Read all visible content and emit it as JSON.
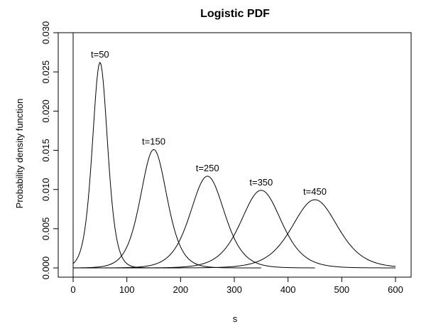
{
  "chart_data": {
    "type": "line",
    "title": "Logistic PDF",
    "xlabel": "s",
    "ylabel": "Probability density function",
    "xlim": [
      0,
      600
    ],
    "ylim": [
      0,
      0.03
    ],
    "x_ticks": [
      0,
      100,
      200,
      300,
      400,
      500,
      600
    ],
    "x_tick_labels": [
      "0",
      "100",
      "200",
      "300",
      "400",
      "500",
      "600"
    ],
    "y_ticks": [
      0,
      0.005,
      0.01,
      0.015,
      0.02,
      0.025,
      0.03
    ],
    "y_tick_labels": [
      "0.000",
      "0.005",
      "0.010",
      "0.015",
      "0.020",
      "0.025",
      "0.030"
    ],
    "grid": false,
    "series": [
      {
        "name": "t=50",
        "location": 50,
        "peak": 0.0262,
        "x_range": [
          0,
          200
        ]
      },
      {
        "name": "t=150",
        "location": 150,
        "peak": 0.0151,
        "x_range": [
          0,
          350
        ]
      },
      {
        "name": "t=250",
        "location": 250,
        "peak": 0.0117,
        "x_range": [
          0,
          450
        ]
      },
      {
        "name": "t=350",
        "location": 350,
        "peak": 0.0099,
        "x_range": [
          0,
          600
        ]
      },
      {
        "name": "t=450",
        "location": 450,
        "peak": 0.0087,
        "x_range": [
          0,
          600
        ]
      }
    ]
  }
}
